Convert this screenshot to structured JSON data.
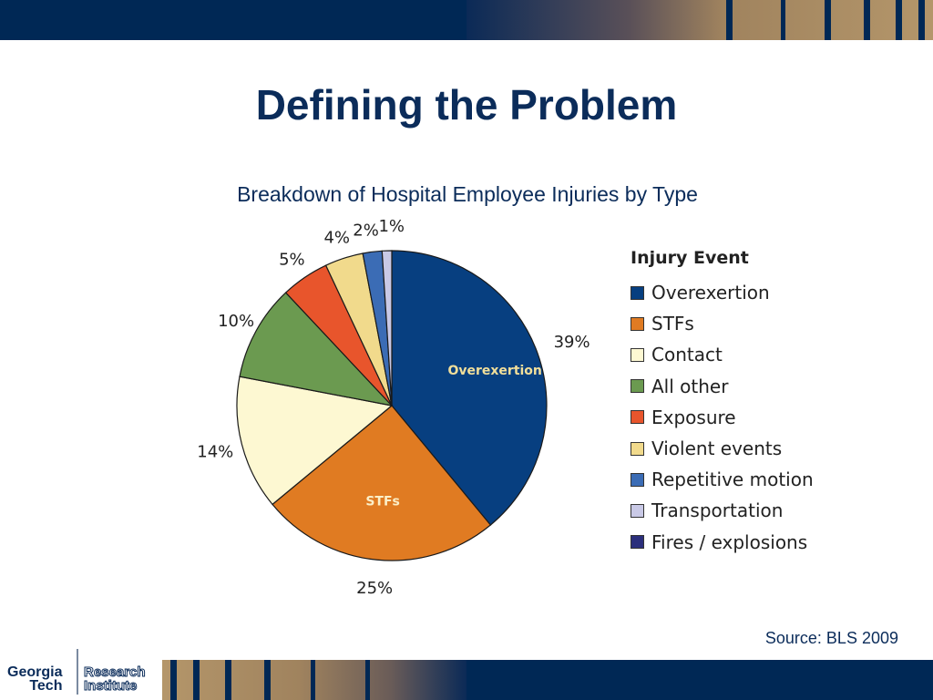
{
  "slide": {
    "title": "Defining the Problem",
    "source": "Source:  BLS 2009",
    "logo_text": [
      "Georgia",
      "Tech",
      "Research",
      "Institute"
    ]
  },
  "chart_data": {
    "type": "pie",
    "title": "Breakdown of Hospital Employee Injuries by Type",
    "legend_title": "Injury Event",
    "legend_position": "right",
    "start_angle": "12 o'clock, clockwise",
    "slices": [
      {
        "label": "Overexertion",
        "value": 39,
        "display": "39%",
        "color": "#073f80",
        "inner_label": "Overexertion",
        "inner_color": "#f2df9a"
      },
      {
        "label": "STFs",
        "value": 25,
        "display": "25%",
        "color": "#e07b22",
        "inner_label": "STFs",
        "inner_color": "#fbefc8"
      },
      {
        "label": "Contact",
        "value": 14,
        "display": "14%",
        "color": "#fdf8d2"
      },
      {
        "label": "All other",
        "value": 10,
        "display": "10%",
        "color": "#6b9a50"
      },
      {
        "label": "Exposure",
        "value": 5,
        "display": "5%",
        "color": "#e8552c"
      },
      {
        "label": "Violent events",
        "value": 4,
        "display": "4%",
        "color": "#f1da8c"
      },
      {
        "label": "Repetitive motion",
        "value": 2,
        "display": "2%",
        "color": "#3b6cb5"
      },
      {
        "label": "Transportation",
        "value": 1,
        "display": "1%",
        "color": "#c9c9e6"
      },
      {
        "label": "Fires / explosions",
        "value": 0,
        "display": "",
        "color": "#2b2f7c"
      }
    ]
  }
}
